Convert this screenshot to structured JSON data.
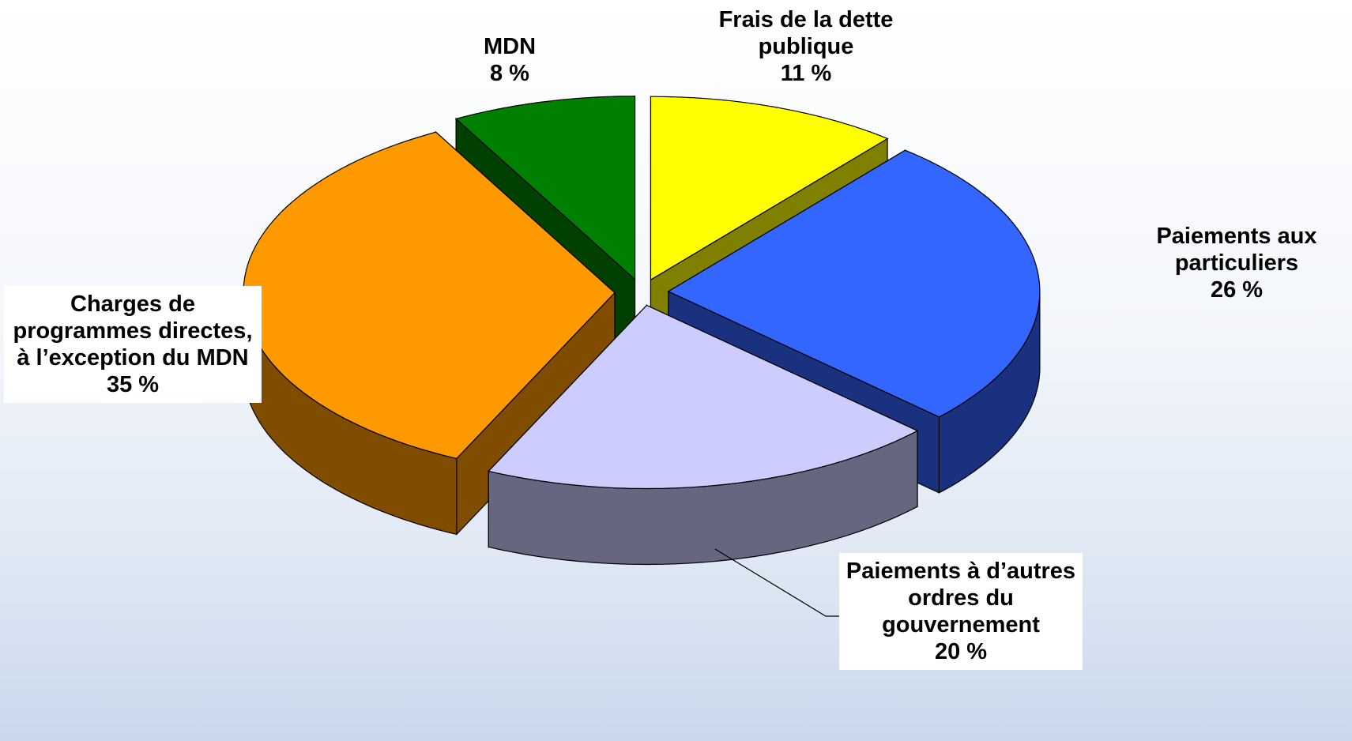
{
  "chart_data": {
    "type": "pie3d",
    "categories": [
      "Frais de la dette publique",
      "Paiements aux particuliers",
      "Paiements à d’autres ordres du gouvernement",
      "Charges de programmes directes, à l’exception du MDN",
      "MDN"
    ],
    "values": [
      11,
      26,
      20,
      35,
      8
    ],
    "value_labels": [
      "11 %",
      "26 %",
      "20 %",
      "35 %",
      "8 %"
    ],
    "colors": [
      "#ffff00",
      "#3366ff",
      "#ccccff",
      "#ff9900",
      "#008000"
    ],
    "side_colors": [
      "#808000",
      "#1a3180",
      "#666680",
      "#804c00",
      "#004000"
    ],
    "exploded": true
  }
}
